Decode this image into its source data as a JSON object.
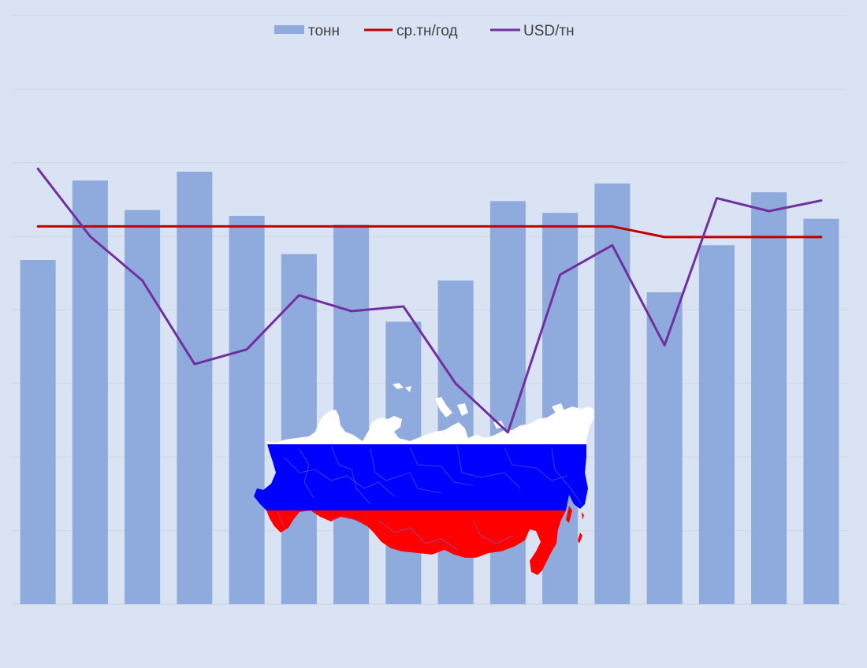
{
  "chart_data": {
    "type": "bar",
    "categories": [
      "",
      "",
      "",
      "",
      "",
      "",
      "",
      "",
      "",
      "",
      "",
      "",
      "",
      "",
      "",
      ""
    ],
    "ylim": [
      0,
      100
    ],
    "grid": true,
    "legend_position": "top",
    "series": [
      {
        "name": "тонн",
        "kind": "bar",
        "color": "#8faadc",
        "values": [
          58.5,
          72.0,
          67.0,
          73.5,
          66.0,
          59.5,
          64.5,
          48.0,
          55.0,
          68.5,
          66.5,
          71.5,
          53.0,
          61.0,
          70.0,
          65.5
        ]
      },
      {
        "name": "ср.тн/год",
        "kind": "line",
        "color": "#c00000",
        "values": [
          64.2,
          64.2,
          64.2,
          64.2,
          64.2,
          64.2,
          64.2,
          64.2,
          64.2,
          64.2,
          64.2,
          64.2,
          62.4,
          62.4,
          62.4,
          62.4
        ]
      },
      {
        "name": "USD/тн",
        "kind": "line",
        "color": "#7030a0",
        "values": [
          74.0,
          62.5,
          55.0,
          40.8,
          43.3,
          52.5,
          49.8,
          50.6,
          37.5,
          29.2,
          56.0,
          61.0,
          44.0,
          69.0,
          66.8,
          68.6
        ]
      }
    ]
  },
  "overlay": {
    "name": "russia-flag-map",
    "colors": {
      "white": "#ffffff",
      "blue": "#0000ff",
      "red": "#ff0000",
      "border": "#6a6ae8"
    }
  }
}
